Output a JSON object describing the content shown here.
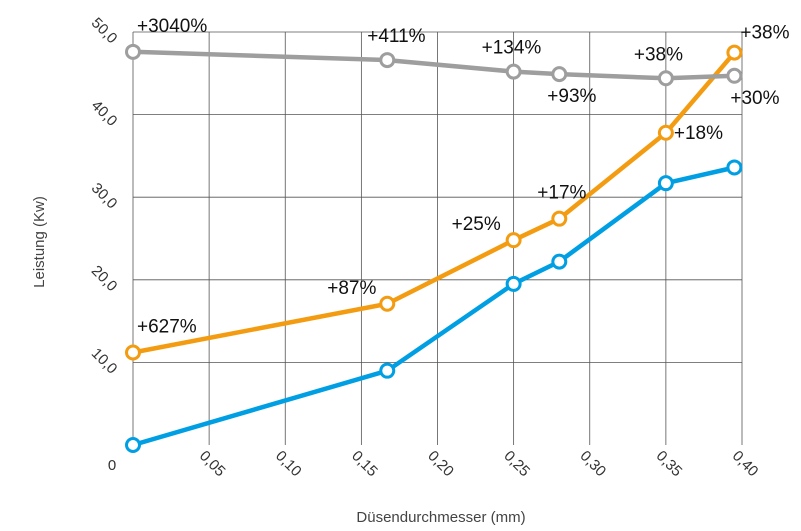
{
  "chart_data": {
    "type": "line",
    "title": "",
    "xlabel": "Düsendurchmesser (mm)",
    "ylabel": "Leistung (Kw)",
    "xlim": [
      0,
      0.4
    ],
    "ylim": [
      0,
      50
    ],
    "grid": true,
    "x_ticks": [
      {
        "value": 0.05,
        "label": "0,05"
      },
      {
        "value": 0.1,
        "label": "0,10"
      },
      {
        "value": 0.15,
        "label": "0,15"
      },
      {
        "value": 0.2,
        "label": "0,20"
      },
      {
        "value": 0.25,
        "label": "0,25"
      },
      {
        "value": 0.3,
        "label": "0,30"
      },
      {
        "value": 0.35,
        "label": "0,35"
      },
      {
        "value": 0.4,
        "label": "0,40"
      }
    ],
    "y_ticks": [
      {
        "value": 10,
        "label": "10,0"
      },
      {
        "value": 20,
        "label": "20,0"
      },
      {
        "value": 30,
        "label": "30,0"
      },
      {
        "value": 40,
        "label": "40,0"
      },
      {
        "value": 50,
        "label": "50,0"
      }
    ],
    "origin_label": "0",
    "series": [
      {
        "color": "#009fe3",
        "points": [
          [
            0.0,
            0.0
          ],
          [
            0.167,
            9.0
          ],
          [
            0.25,
            19.5
          ],
          [
            0.28,
            22.2
          ],
          [
            0.35,
            31.7
          ],
          [
            0.395,
            33.6
          ]
        ]
      },
      {
        "color": "#f39c12",
        "points": [
          [
            0.0,
            11.2
          ],
          [
            0.167,
            17.1
          ],
          [
            0.25,
            24.8
          ],
          [
            0.28,
            27.4
          ],
          [
            0.35,
            37.8
          ],
          [
            0.395,
            47.5
          ]
        ]
      },
      {
        "color": "#9e9e9e",
        "points": [
          [
            0.0,
            47.6
          ],
          [
            0.167,
            46.6
          ],
          [
            0.25,
            45.2
          ],
          [
            0.28,
            44.9
          ],
          [
            0.35,
            44.4
          ],
          [
            0.395,
            44.7
          ]
        ]
      }
    ],
    "annotations": [
      {
        "text": "+627%",
        "x": 0.0,
        "y": 11.2,
        "dx": 4,
        "dy": -20,
        "anchor": "start"
      },
      {
        "text": "+87%",
        "x": 0.167,
        "y": 17.1,
        "dx": -60,
        "dy": -10,
        "anchor": "start"
      },
      {
        "text": "+25%",
        "x": 0.25,
        "y": 24.8,
        "dx": -62,
        "dy": -10,
        "anchor": "start"
      },
      {
        "text": "+17%",
        "x": 0.28,
        "y": 27.4,
        "dx": -22,
        "dy": -20,
        "anchor": "start"
      },
      {
        "text": "+18%",
        "x": 0.35,
        "y": 37.8,
        "dx": 8,
        "dy": 6,
        "anchor": "start"
      },
      {
        "text": "+38%",
        "x": 0.395,
        "y": 47.5,
        "dx": 6,
        "dy": -14,
        "anchor": "start"
      },
      {
        "text": "+3040%",
        "x": 0.0,
        "y": 47.6,
        "dx": 4,
        "dy": -20,
        "anchor": "start"
      },
      {
        "text": "+411%",
        "x": 0.167,
        "y": 46.6,
        "dx": -20,
        "dy": -18,
        "anchor": "start"
      },
      {
        "text": "+134%",
        "x": 0.25,
        "y": 45.2,
        "dx": -32,
        "dy": -18,
        "anchor": "start"
      },
      {
        "text": "+93%",
        "x": 0.28,
        "y": 44.9,
        "dx": -12,
        "dy": 28,
        "anchor": "start"
      },
      {
        "text": "+38%",
        "x": 0.35,
        "y": 44.4,
        "dx": -32,
        "dy": -18,
        "anchor": "start"
      },
      {
        "text": "+30%",
        "x": 0.395,
        "y": 44.7,
        "dx": -4,
        "dy": 28,
        "anchor": "start"
      }
    ]
  }
}
